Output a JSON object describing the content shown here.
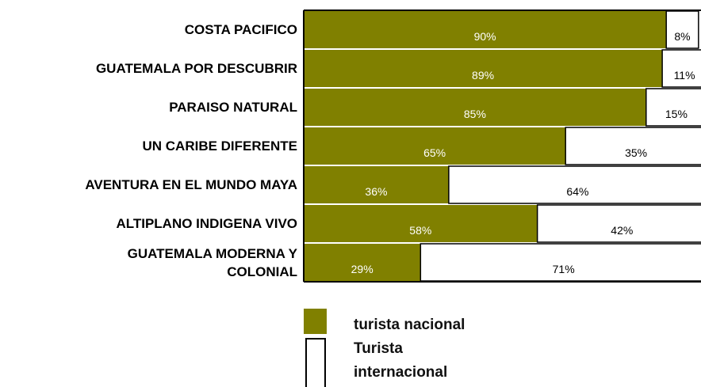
{
  "chart_data": {
    "type": "stacked_barh",
    "categories": [
      "COSTA PACIFICO",
      "GUATEMALA POR DESCUBRIR",
      "PARAISO NATURAL",
      "UN CARIBE DIFERENTE",
      "AVENTURA EN EL MUNDO MAYA",
      "ALTIPLANO INDIGENA VIVO",
      "GUATEMALA MODERNA Y COLONIAL"
    ],
    "series": [
      {
        "name": "turista nacional",
        "color": "#808000",
        "values": [
          90,
          89,
          85,
          65,
          36,
          58,
          29
        ],
        "value_labels": [
          "90%",
          "89%",
          "85%",
          "65%",
          "36%",
          "58%",
          "29%"
        ]
      },
      {
        "name": "Turista internacional",
        "color": "#ffffff",
        "values": [
          8,
          11,
          15,
          35,
          64,
          42,
          71
        ],
        "value_labels": [
          "8%",
          "11%",
          "15%",
          "35%",
          "64%",
          "42%",
          "71%"
        ]
      }
    ],
    "xlim": [
      0,
      100
    ]
  }
}
